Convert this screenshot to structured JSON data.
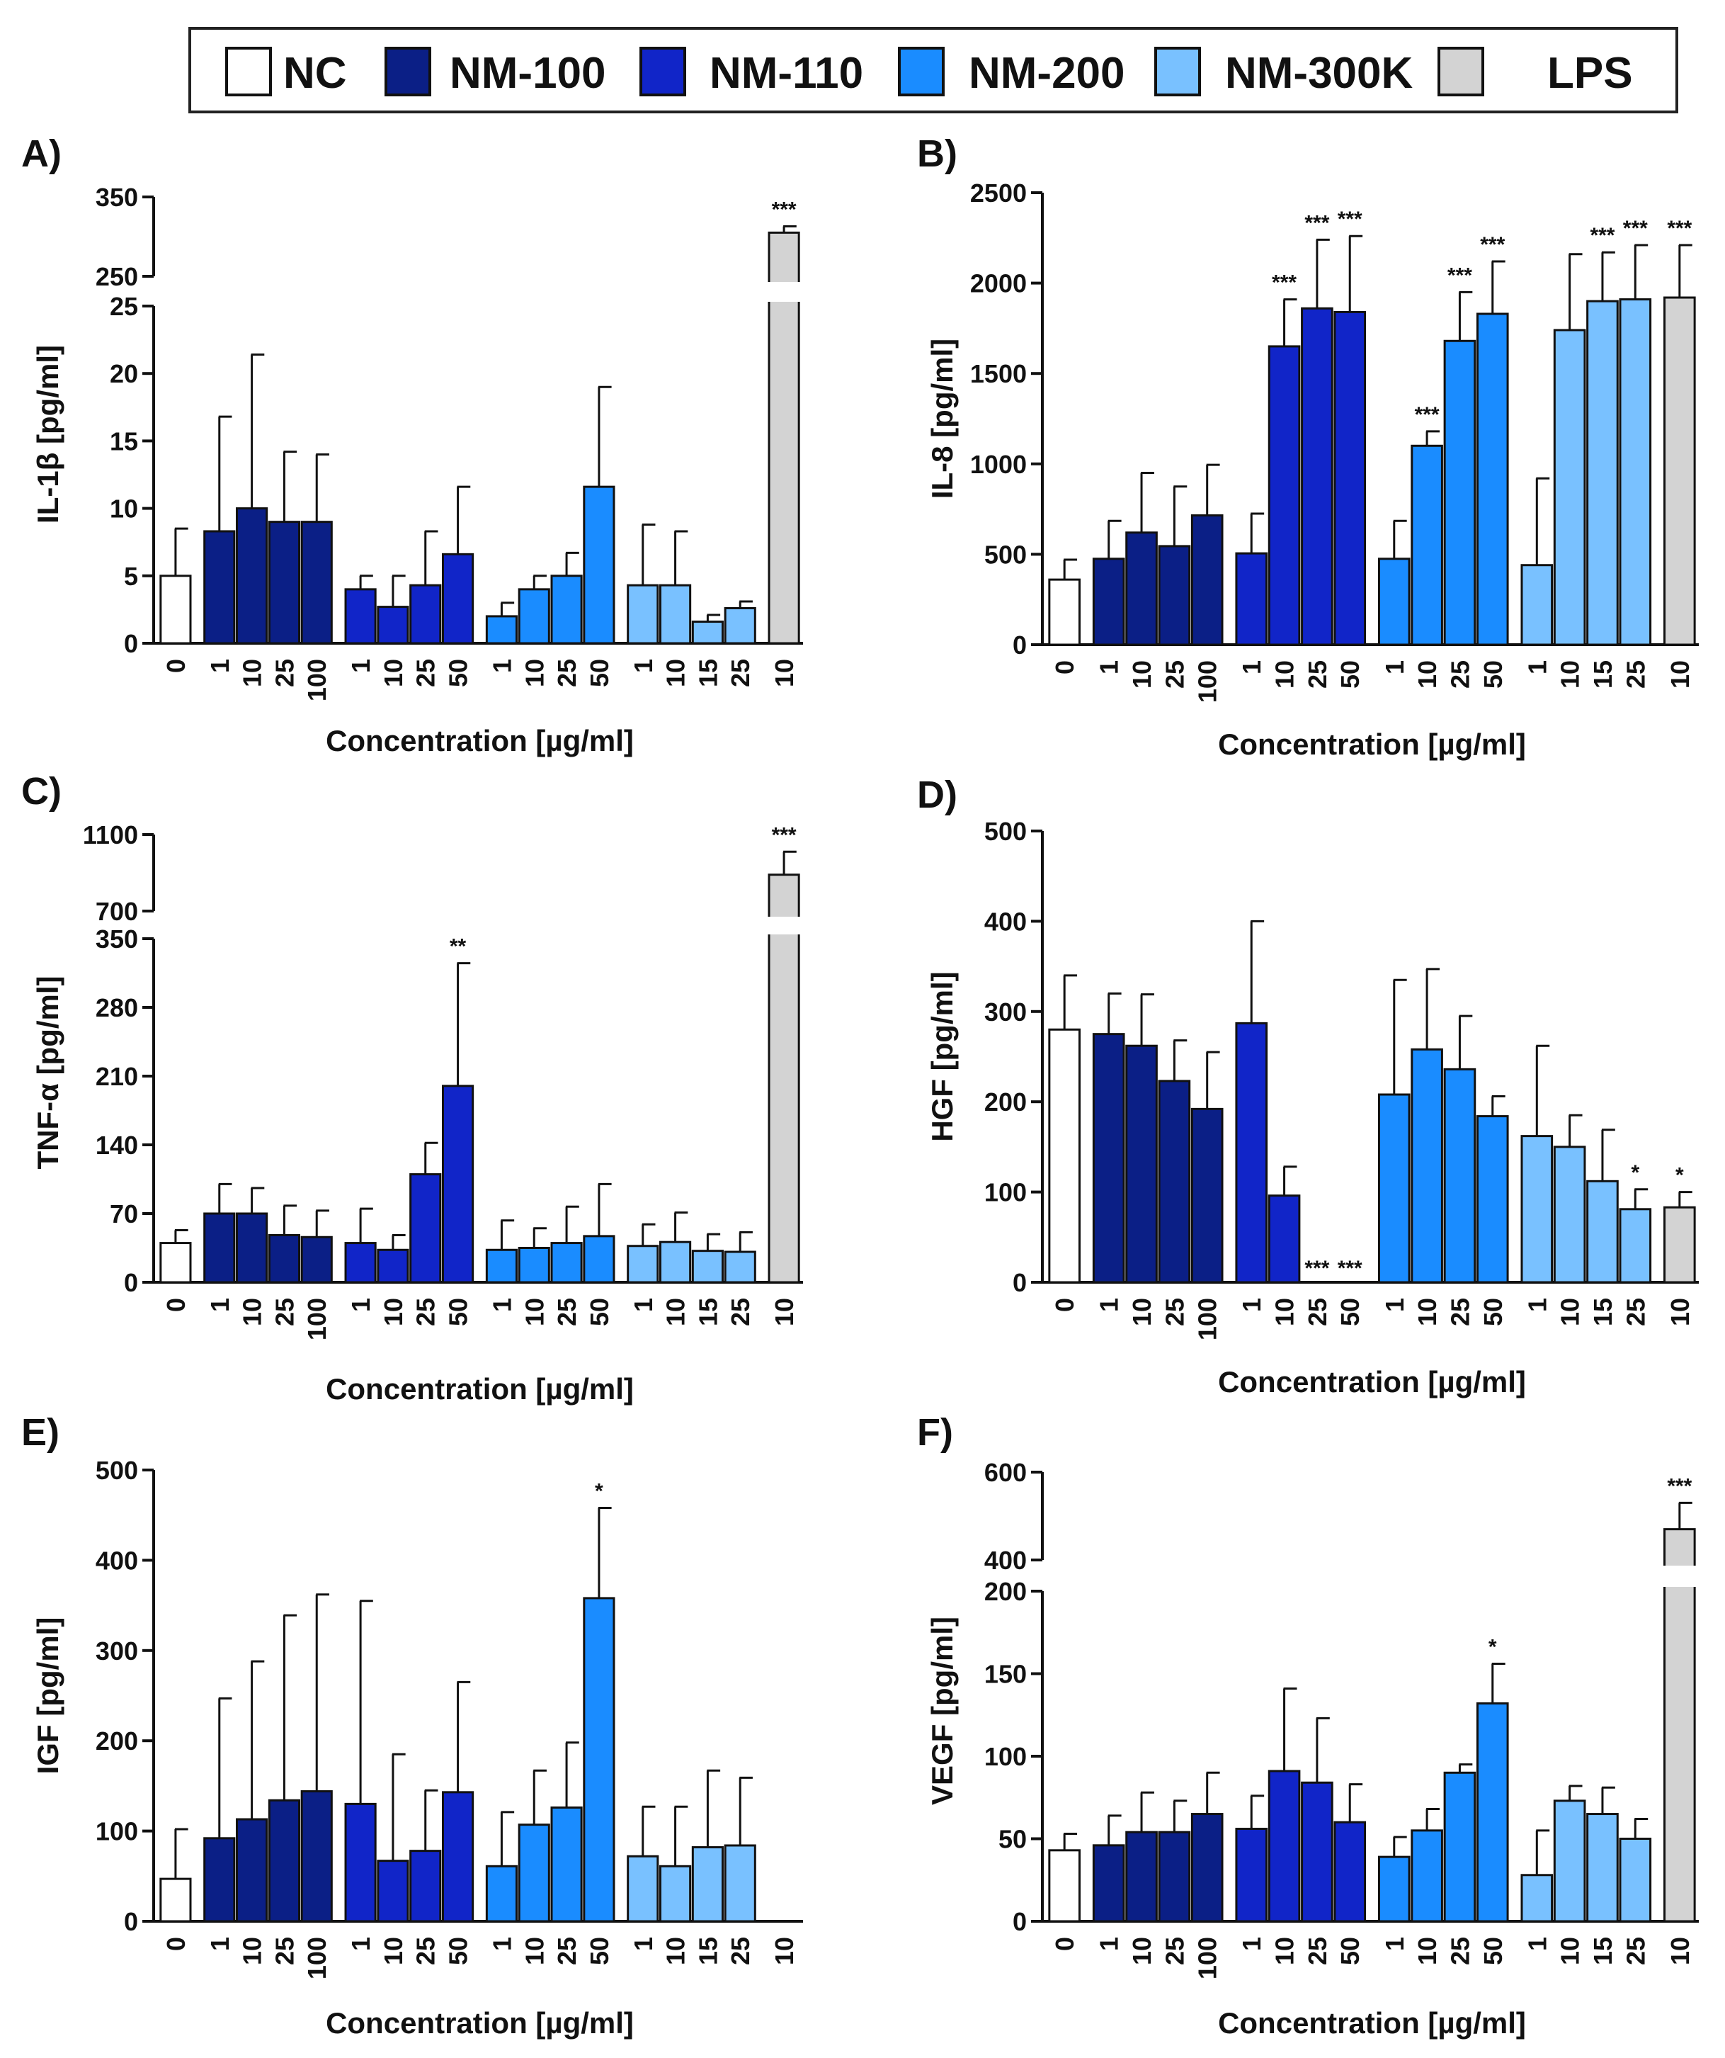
{
  "colors": {
    "NC": "#ffffff",
    "NM-100": "#0b1f86",
    "NM-110": "#1125c8",
    "NM-200": "#1a8cff",
    "NM-300K": "#79c1ff",
    "LPS": "#d3d3d3"
  },
  "legend": {
    "items": [
      {
        "label": "NC",
        "color": "#ffffff"
      },
      {
        "label": "NM-100",
        "color": "#0b1f86"
      },
      {
        "label": "NM-110",
        "color": "#1125c8"
      },
      {
        "label": "NM-200",
        "color": "#1a8cff"
      },
      {
        "label": "NM-300K",
        "color": "#79c1ff"
      },
      {
        "label": "LPS",
        "color": "#d3d3d3"
      }
    ]
  },
  "chart_data": [
    {
      "panel": "A)",
      "type": "bar",
      "ylabel": "IL-1β [pg/ml]",
      "xlabel": "Concentration [µg/ml]",
      "axis_break": true,
      "lower": {
        "ylim": [
          0,
          25
        ],
        "ticks": [
          0,
          5,
          10,
          15,
          20,
          25
        ]
      },
      "upper": {
        "ylim": [
          250,
          350
        ],
        "ticks": [
          250,
          350
        ]
      },
      "groups": [
        {
          "name": "NC",
          "categories": [
            "0"
          ],
          "values": [
            5
          ],
          "errors": [
            3.5
          ]
        },
        {
          "name": "NM-100",
          "categories": [
            "1",
            "10",
            "25",
            "100"
          ],
          "values": [
            8.3,
            10,
            9,
            9
          ],
          "errors": [
            8.5,
            11.4,
            5.2,
            5
          ]
        },
        {
          "name": "NM-110",
          "categories": [
            "1",
            "10",
            "25",
            "50"
          ],
          "values": [
            4,
            2.7,
            4.3,
            6.6
          ],
          "errors": [
            1,
            2.3,
            4,
            5
          ]
        },
        {
          "name": "NM-200",
          "categories": [
            "1",
            "10",
            "25",
            "50"
          ],
          "values": [
            2,
            4,
            5,
            11.6
          ],
          "errors": [
            1,
            1,
            1.7,
            7.4
          ]
        },
        {
          "name": "NM-300K",
          "categories": [
            "1",
            "10",
            "15",
            "25"
          ],
          "values": [
            4.3,
            4.3,
            1.6,
            2.6
          ],
          "errors": [
            4.5,
            4,
            0.5,
            0.5
          ]
        },
        {
          "name": "LPS",
          "categories": [
            "10"
          ],
          "values": [
            305
          ],
          "errors": [
            8
          ],
          "sig": [
            "***"
          ]
        }
      ]
    },
    {
      "panel": "B)",
      "type": "bar",
      "ylabel": "IL-8 [pg/ml]",
      "xlabel": "Concentration [µg/ml]",
      "axis_break": false,
      "ylim": [
        0,
        2500
      ],
      "ticks": [
        0,
        500,
        1000,
        1500,
        2000,
        2500
      ],
      "groups": [
        {
          "name": "NC",
          "categories": [
            "0"
          ],
          "values": [
            360
          ],
          "errors": [
            110
          ]
        },
        {
          "name": "NM-100",
          "categories": [
            "1",
            "10",
            "25",
            "100"
          ],
          "values": [
            475,
            620,
            545,
            715
          ],
          "errors": [
            210,
            330,
            330,
            280
          ]
        },
        {
          "name": "NM-110",
          "categories": [
            "1",
            "10",
            "25",
            "50"
          ],
          "values": [
            505,
            1650,
            1860,
            1840
          ],
          "errors": [
            220,
            260,
            380,
            420
          ],
          "sig": [
            "",
            "***",
            "***",
            "***"
          ]
        },
        {
          "name": "NM-200",
          "categories": [
            "1",
            "10",
            "25",
            "50"
          ],
          "values": [
            475,
            1100,
            1680,
            1830
          ],
          "errors": [
            210,
            80,
            270,
            290
          ],
          "sig": [
            "",
            "***",
            "***",
            "***"
          ]
        },
        {
          "name": "NM-300K",
          "categories": [
            "1",
            "10",
            "15",
            "25"
          ],
          "values": [
            440,
            1740,
            1900,
            1910
          ],
          "errors": [
            480,
            420,
            270,
            300
          ],
          "sig": [
            "",
            "",
            "***",
            "***"
          ]
        },
        {
          "name": "LPS",
          "categories": [
            "10"
          ],
          "values": [
            1920
          ],
          "errors": [
            290
          ],
          "sig": [
            "***"
          ]
        }
      ]
    },
    {
      "panel": "C)",
      "type": "bar",
      "ylabel": "TNF-α [pg/ml]",
      "xlabel": "Concentration [µg/ml]",
      "axis_break": true,
      "lower": {
        "ylim": [
          0,
          350
        ],
        "ticks": [
          0,
          70,
          140,
          210,
          280,
          350
        ]
      },
      "upper": {
        "ylim": [
          700,
          1100
        ],
        "ticks": [
          700,
          1100
        ]
      },
      "groups": [
        {
          "name": "NC",
          "categories": [
            "0"
          ],
          "values": [
            40
          ],
          "errors": [
            13
          ]
        },
        {
          "name": "NM-100",
          "categories": [
            "1",
            "10",
            "25",
            "100"
          ],
          "values": [
            70,
            70,
            48,
            46
          ],
          "errors": [
            30,
            26,
            30,
            27
          ]
        },
        {
          "name": "NM-110",
          "categories": [
            "1",
            "10",
            "25",
            "50"
          ],
          "values": [
            40,
            33,
            110,
            200
          ],
          "errors": [
            35,
            15,
            32,
            125
          ],
          "sig": [
            "",
            "",
            "",
            "**"
          ]
        },
        {
          "name": "NM-200",
          "categories": [
            "1",
            "10",
            "25",
            "50"
          ],
          "values": [
            33,
            35,
            40,
            47
          ],
          "errors": [
            30,
            20,
            37,
            53
          ]
        },
        {
          "name": "NM-300K",
          "categories": [
            "1",
            "10",
            "15",
            "25"
          ],
          "values": [
            37,
            41,
            32,
            31
          ],
          "errors": [
            22,
            30,
            17,
            20
          ]
        },
        {
          "name": "LPS",
          "categories": [
            "10"
          ],
          "values": [
            890
          ],
          "errors": [
            120
          ],
          "sig": [
            "***"
          ]
        }
      ]
    },
    {
      "panel": "D)",
      "type": "bar",
      "ylabel": "HGF [pg/ml]",
      "xlabel": "Concentration [µg/ml]",
      "axis_break": false,
      "ylim": [
        0,
        500
      ],
      "ticks": [
        0,
        100,
        200,
        300,
        400,
        500
      ],
      "groups": [
        {
          "name": "NC",
          "categories": [
            "0"
          ],
          "values": [
            280
          ],
          "errors": [
            60
          ]
        },
        {
          "name": "NM-100",
          "categories": [
            "1",
            "10",
            "25",
            "100"
          ],
          "values": [
            275,
            262,
            223,
            192
          ],
          "errors": [
            45,
            57,
            45,
            63
          ]
        },
        {
          "name": "NM-110",
          "categories": [
            "1",
            "10",
            "25",
            "50"
          ],
          "values": [
            287,
            96,
            0,
            0
          ],
          "errors": [
            113,
            32,
            0,
            0
          ],
          "sig": [
            "",
            "",
            "***",
            "***"
          ]
        },
        {
          "name": "NM-200",
          "categories": [
            "1",
            "10",
            "25",
            "50"
          ],
          "values": [
            208,
            258,
            236,
            184
          ],
          "errors": [
            127,
            89,
            59,
            22
          ]
        },
        {
          "name": "NM-300K",
          "categories": [
            "1",
            "10",
            "15",
            "25"
          ],
          "values": [
            162,
            150,
            112,
            81
          ],
          "errors": [
            100,
            35,
            57,
            22
          ],
          "sig": [
            "",
            "",
            "",
            "*"
          ]
        },
        {
          "name": "LPS",
          "categories": [
            "10"
          ],
          "values": [
            83
          ],
          "errors": [
            17
          ],
          "sig": [
            "*"
          ]
        }
      ]
    },
    {
      "panel": "E)",
      "type": "bar",
      "ylabel": "IGF [pg/ml]",
      "xlabel": "Concentration [µg/ml]",
      "axis_break": false,
      "ylim": [
        0,
        500
      ],
      "ticks": [
        0,
        100,
        200,
        300,
        400,
        500
      ],
      "groups": [
        {
          "name": "NC",
          "categories": [
            "0"
          ],
          "values": [
            47
          ],
          "errors": [
            55
          ]
        },
        {
          "name": "NM-100",
          "categories": [
            "1",
            "10",
            "25",
            "100"
          ],
          "values": [
            92,
            113,
            134,
            144
          ],
          "errors": [
            155,
            175,
            205,
            218
          ]
        },
        {
          "name": "NM-110",
          "categories": [
            "1",
            "10",
            "25",
            "50"
          ],
          "values": [
            130,
            67,
            78,
            143
          ],
          "errors": [
            225,
            118,
            67,
            122
          ]
        },
        {
          "name": "NM-200",
          "categories": [
            "1",
            "10",
            "25",
            "50"
          ],
          "values": [
            61,
            107,
            126,
            358
          ],
          "errors": [
            60,
            60,
            72,
            100
          ],
          "sig": [
            "",
            "",
            "",
            "*"
          ]
        },
        {
          "name": "NM-300K",
          "categories": [
            "1",
            "10",
            "15",
            "25"
          ],
          "values": [
            72,
            61,
            82,
            84
          ],
          "errors": [
            55,
            66,
            85,
            75
          ]
        },
        {
          "name": "LPS",
          "categories": [
            "10"
          ],
          "values": [
            0
          ],
          "errors": [
            0
          ]
        }
      ]
    },
    {
      "panel": "F)",
      "type": "bar",
      "ylabel": "VEGF [pg/ml]",
      "xlabel": "Concentration [µg/ml]",
      "axis_break": true,
      "lower": {
        "ylim": [
          0,
          200
        ],
        "ticks": [
          0,
          50,
          100,
          150,
          200
        ]
      },
      "upper": {
        "ylim": [
          400,
          600
        ],
        "ticks": [
          400,
          600
        ]
      },
      "groups": [
        {
          "name": "NC",
          "categories": [
            "0"
          ],
          "values": [
            43
          ],
          "errors": [
            10
          ]
        },
        {
          "name": "NM-100",
          "categories": [
            "1",
            "10",
            "25",
            "100"
          ],
          "values": [
            46,
            54,
            54,
            65
          ],
          "errors": [
            18,
            24,
            19,
            25
          ]
        },
        {
          "name": "NM-110",
          "categories": [
            "1",
            "10",
            "25",
            "50"
          ],
          "values": [
            56,
            91,
            84,
            60
          ],
          "errors": [
            20,
            50,
            39,
            23
          ]
        },
        {
          "name": "NM-200",
          "categories": [
            "1",
            "10",
            "25",
            "50"
          ],
          "values": [
            39,
            55,
            90,
            132
          ],
          "errors": [
            12,
            13,
            5,
            24
          ],
          "sig": [
            "",
            "",
            "",
            "*"
          ]
        },
        {
          "name": "NM-300K",
          "categories": [
            "1",
            "10",
            "15",
            "25"
          ],
          "values": [
            28,
            73,
            65,
            50
          ],
          "errors": [
            27,
            9,
            16,
            12
          ]
        },
        {
          "name": "LPS",
          "categories": [
            "10"
          ],
          "values": [
            470
          ],
          "errors": [
            60
          ],
          "sig": [
            "***"
          ]
        }
      ]
    }
  ]
}
